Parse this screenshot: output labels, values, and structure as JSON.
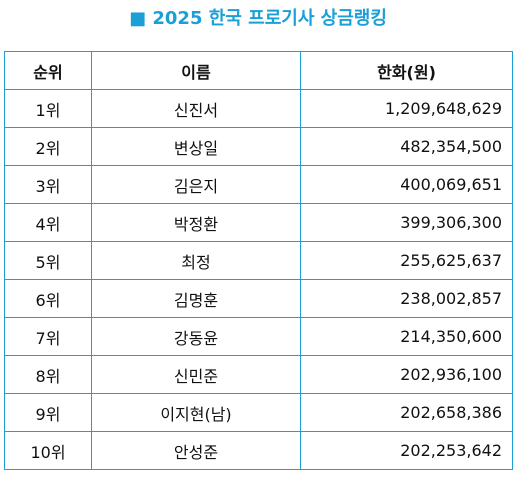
{
  "title": "■ 2025 한국 프로기사 상금랭킹",
  "headers": {
    "rank": "순위",
    "name": "이름",
    "amount": "한화(원)"
  },
  "rows": [
    {
      "rank": "1위",
      "name": "신진서",
      "amount": "1,209,648,629"
    },
    {
      "rank": "2위",
      "name": "변상일",
      "amount": "482,354,500"
    },
    {
      "rank": "3위",
      "name": "김은지",
      "amount": "400,069,651"
    },
    {
      "rank": "4위",
      "name": "박정환",
      "amount": "399,306,300"
    },
    {
      "rank": "5위",
      "name": "최정",
      "amount": "255,625,637"
    },
    {
      "rank": "6위",
      "name": "김명훈",
      "amount": "238,002,857"
    },
    {
      "rank": "7위",
      "name": "강동윤",
      "amount": "214,350,600"
    },
    {
      "rank": "8위",
      "name": "신민준",
      "amount": "202,936,100"
    },
    {
      "rank": "9위",
      "name": "이지현(남)",
      "amount": "202,658,386"
    },
    {
      "rank": "10위",
      "name": "안성준",
      "amount": "202,253,642"
    }
  ]
}
